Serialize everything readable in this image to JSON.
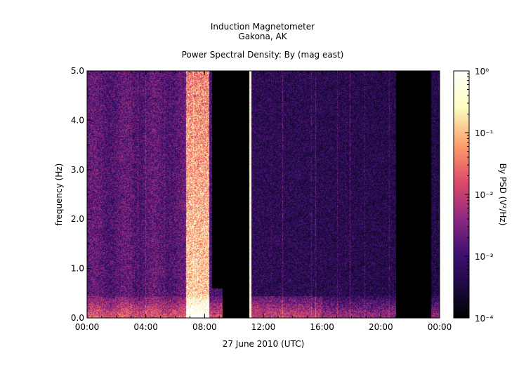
{
  "chart_data": {
    "type": "heatmap",
    "title": [
      "Induction Magnetometer",
      "Gakona, AK"
    ],
    "subtitle": "Power Spectral Density: By (mag east)",
    "xlabel": "27 June 2010 (UTC)",
    "ylabel": "frequency (Hz)",
    "x_ticks": [
      "00:00",
      "04:00",
      "08:00",
      "12:00",
      "16:00",
      "20:00",
      "00:00"
    ],
    "y_ticks": [
      "0.0",
      "1.0",
      "2.0",
      "3.0",
      "4.0",
      "5.0"
    ],
    "xlim_hours": [
      0,
      24
    ],
    "ylim": [
      0,
      5
    ],
    "colorbar": {
      "label": "By PSD (V²/Hz)",
      "scale": "log",
      "ticks": [
        "10⁰",
        "10⁻¹",
        "10⁻²",
        "10⁻³",
        "10⁻⁴"
      ],
      "range": [
        0.0001,
        1
      ],
      "colormap": [
        "#000000",
        "#1a0a3c",
        "#3b0f70",
        "#8c2981",
        "#de4968",
        "#fe9f6d",
        "#fcfdbf",
        "#ffffff"
      ]
    },
    "features": [
      {
        "name": "broadband enhancement",
        "start_h": 6.7,
        "end_h": 8.3,
        "level": "high"
      },
      {
        "name": "no data",
        "start_h": 8.5,
        "end_h": 11.0
      },
      {
        "name": "spike",
        "at_h": 11.1
      },
      {
        "name": "no data",
        "start_h": 21.0,
        "end_h": 23.4
      }
    ]
  }
}
